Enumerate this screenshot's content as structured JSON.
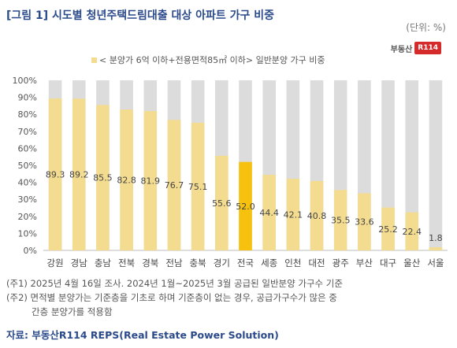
{
  "title": "[그림 1] 시도별 청년주택드림대출 대상 아파트 가구 비중",
  "unit_label": "(단위: %)",
  "logo": {
    "text": "부동산",
    "badge": "R114"
  },
  "legend_label": "< 분양가 6억 이하+전용면적85㎡ 이하> 일반분양 가구 비중",
  "colors": {
    "bar": "#f3dc8f",
    "highlight": "#f6c20d",
    "background_bar": "#dcdcdc",
    "title": "#2b4a8b"
  },
  "chart_data": {
    "type": "bar",
    "categories": [
      "강원",
      "경남",
      "충남",
      "전북",
      "경북",
      "전남",
      "충북",
      "경기",
      "전국",
      "세종",
      "인천",
      "대전",
      "광주",
      "부산",
      "대구",
      "울산",
      "서울"
    ],
    "values": [
      89.3,
      89.2,
      85.5,
      82.8,
      81.9,
      76.7,
      75.1,
      55.6,
      52.0,
      44.4,
      42.1,
      40.8,
      35.5,
      33.6,
      25.2,
      22.4,
      1.8
    ],
    "value_labels": [
      "89.3",
      "89.2",
      "85.5",
      "82.8",
      "81.9",
      "76.7",
      "75.1",
      "55.6",
      "52.0",
      "44.4",
      "42.1",
      "40.8",
      "35.5",
      "33.6",
      "25.2",
      "22.4",
      "1.8"
    ],
    "highlight_category": "전국",
    "ylim": [
      0,
      100
    ],
    "yticks": [
      "0%",
      "10%",
      "20%",
      "30%",
      "40%",
      "50%",
      "60%",
      "70%",
      "80%",
      "90%",
      "100%"
    ],
    "background_value": 100,
    "legend": "< 분양가 6억 이하+전용면적85㎡ 이하> 일반분양 가구 비중"
  },
  "notes": [
    "(주1) 2025년 4월 16일 조사. 2024년 1월~2025년 3월 공급된 일반분양 가구수 기준",
    "(주2) 면적별 분양가는 기준층을 기초로 하며 기준층이 없는 경우, 공급가구수가 많은 중",
    "간층 분양가를 적용함"
  ],
  "source": "자료: 부동산R114 REPS(Real Estate Power Solution)"
}
